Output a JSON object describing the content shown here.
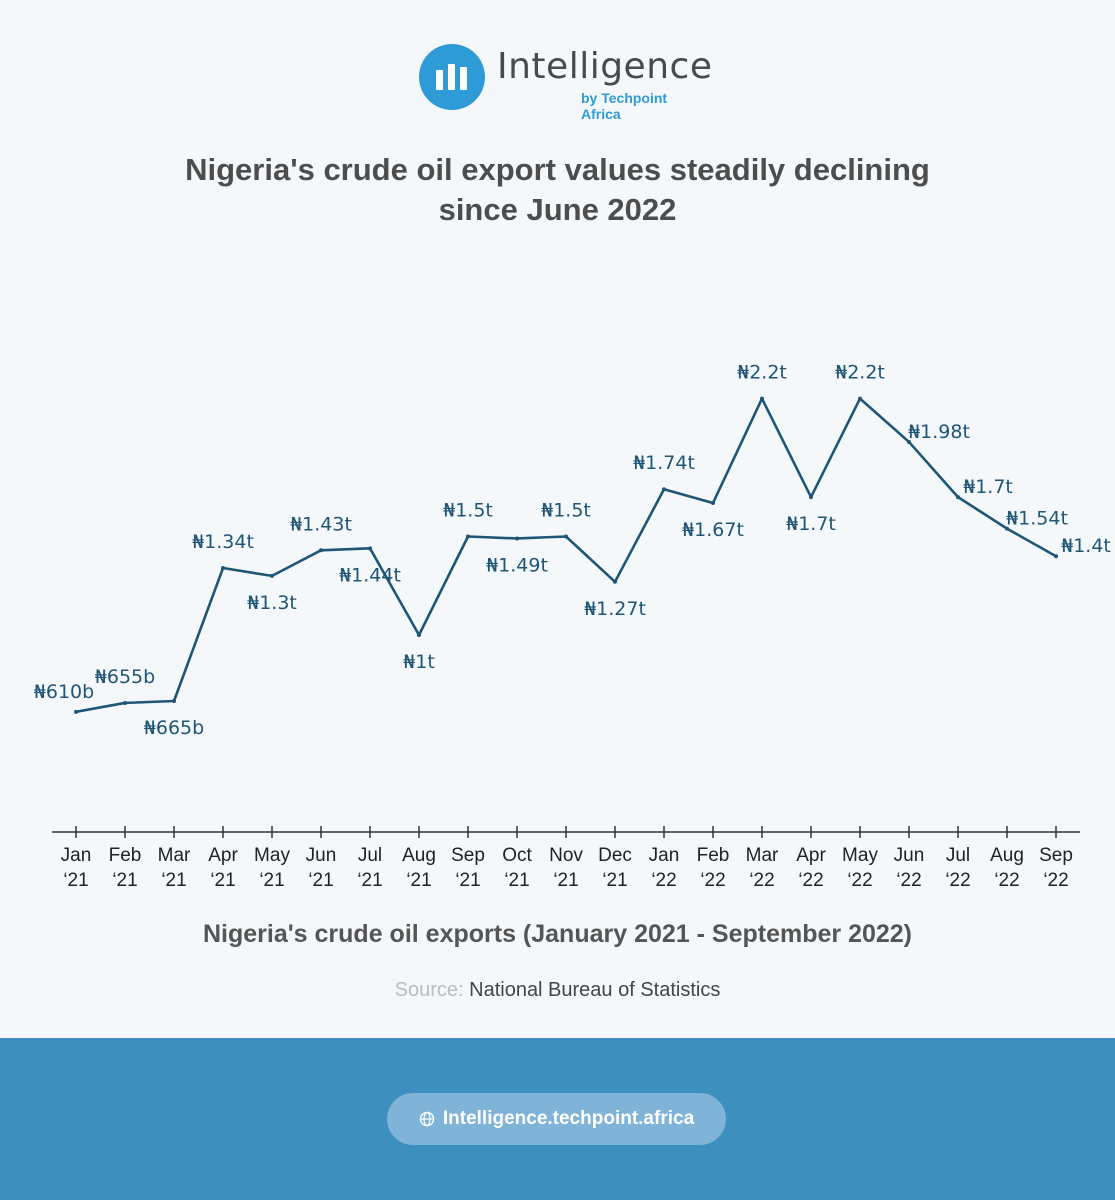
{
  "brand": {
    "name": "Intelligence",
    "sub": "by Techpoint Africa",
    "icon": "bar-chart-logo-icon",
    "color": "#2f9bd6"
  },
  "title_lines": [
    "Nigeria's crude oil export values steadily declining",
    "since June 2022"
  ],
  "chart_data": {
    "type": "line",
    "title": "Nigeria's crude oil export values steadily declining since June 2022",
    "subtitle": "Nigeria's crude oil exports (January 2021 - September 2022)",
    "categories": [
      [
        "Jan",
        "‘21"
      ],
      [
        "Feb",
        "‘21"
      ],
      [
        "Mar",
        "‘21"
      ],
      [
        "Apr",
        "‘21"
      ],
      [
        "May",
        "‘21"
      ],
      [
        "Jun",
        "‘21"
      ],
      [
        "Jul",
        "‘21"
      ],
      [
        "Aug",
        "‘21"
      ],
      [
        "Sep",
        "‘21"
      ],
      [
        "Oct",
        "‘21"
      ],
      [
        "Nov",
        "‘21"
      ],
      [
        "Dec",
        "‘21"
      ],
      [
        "Jan",
        "‘22"
      ],
      [
        "Feb",
        "‘22"
      ],
      [
        "Mar",
        "‘22"
      ],
      [
        "Apr",
        "‘22"
      ],
      [
        "May",
        "‘22"
      ],
      [
        "Jun",
        "‘22"
      ],
      [
        "Jul",
        "‘22"
      ],
      [
        "Aug",
        "‘22"
      ],
      [
        "Sep",
        "‘22"
      ]
    ],
    "values": [
      0.61,
      0.655,
      0.665,
      1.34,
      1.3,
      1.43,
      1.44,
      1.0,
      1.5,
      1.49,
      1.5,
      1.27,
      1.74,
      1.67,
      2.2,
      1.7,
      2.2,
      1.98,
      1.7,
      1.54,
      1.4
    ],
    "labels": [
      "₦610b",
      "₦655b",
      "₦665b",
      "₦1.34t",
      "₦1.3t",
      "₦1.43t",
      "₦1.44t",
      "₦1t",
      "₦1.5t",
      "₦1.49t",
      "₦1.5t",
      "₦1.27t",
      "₦1.74t",
      "₦1.67t",
      "₦2.2t",
      "₦1.7t",
      "₦2.2t",
      "₦1.98t",
      "₦1.7t",
      "₦1.54t",
      "₦1.4t"
    ],
    "label_side": [
      "above",
      "above",
      "below",
      "above",
      "below",
      "above",
      "below",
      "below",
      "above",
      "below",
      "above",
      "below",
      "above",
      "below",
      "above",
      "below",
      "above",
      "right",
      "right",
      "right",
      "right"
    ],
    "unit": "trillion naira",
    "ylim": [
      0,
      2.35
    ],
    "grid": false,
    "line_color": "#1f5575",
    "label_color": "#1f5575"
  },
  "source": {
    "label": "Source:",
    "value": "National Bureau of Statistics"
  },
  "footer": {
    "url": "Intelligence.techpoint.africa",
    "icon": "globe-icon",
    "bg": "#3d8fbf"
  }
}
